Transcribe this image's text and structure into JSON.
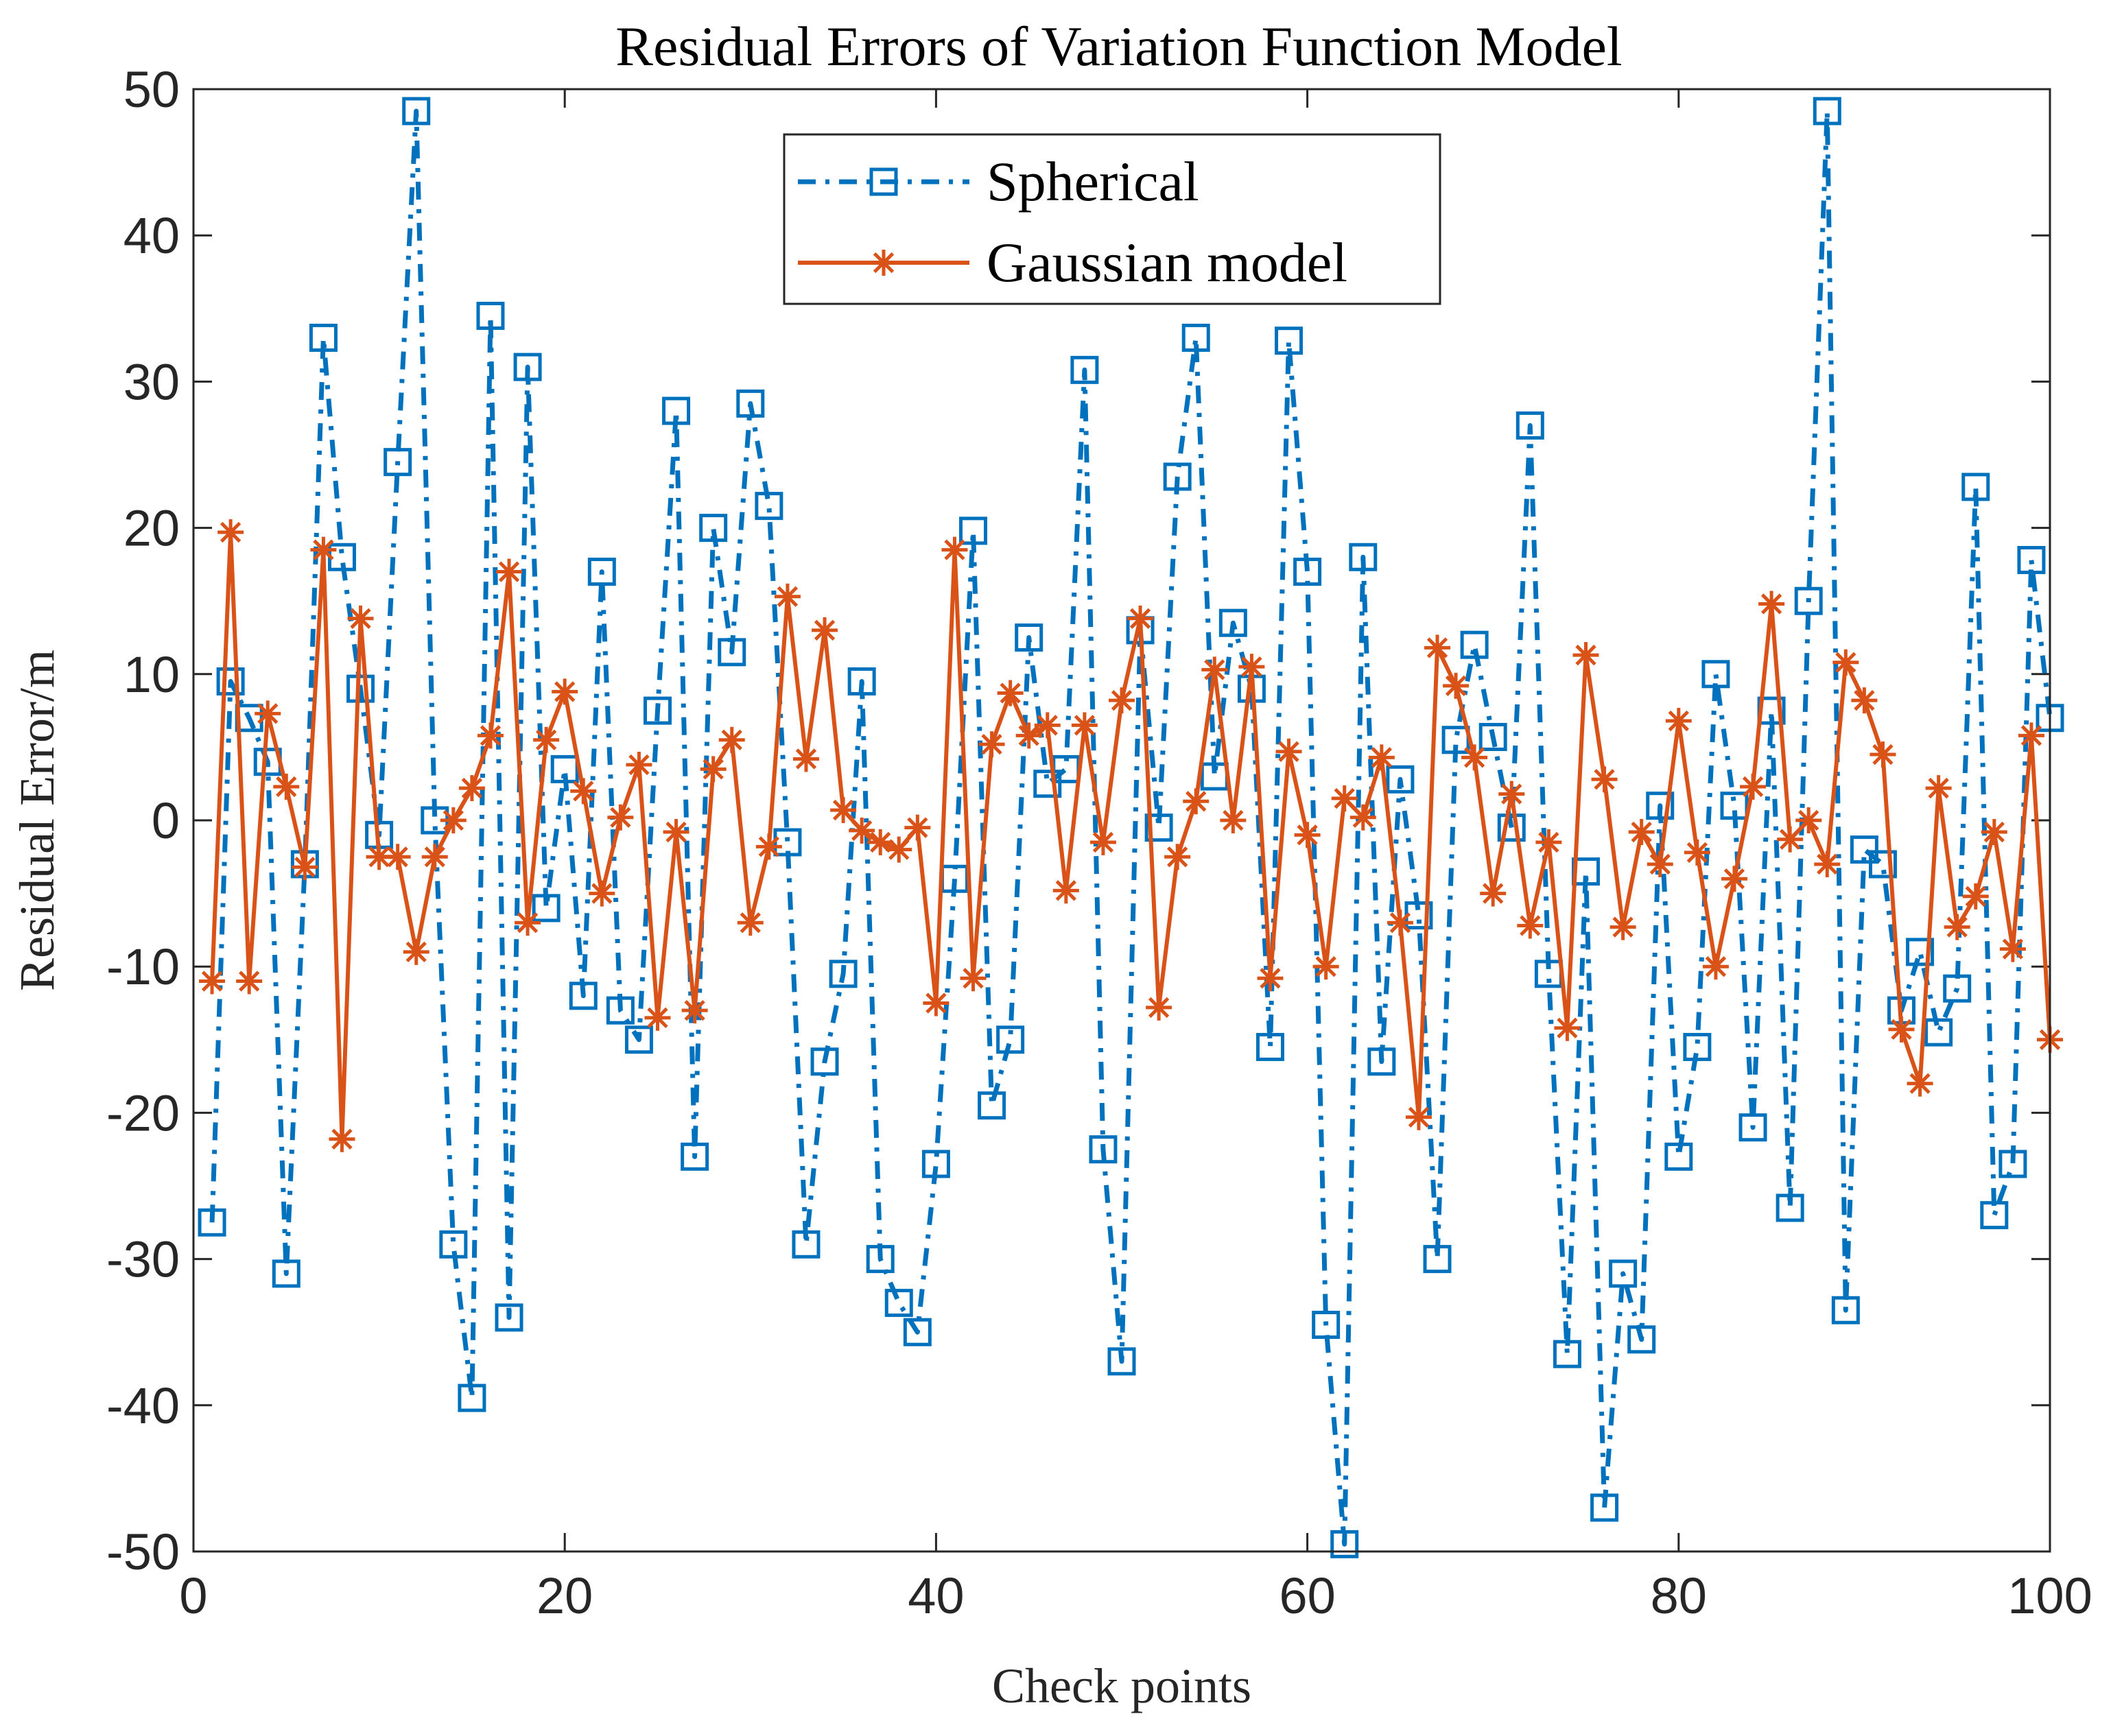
{
  "chart_data": {
    "type": "line",
    "title": "Residual Errors of Variation Function Model",
    "xlabel": "Check points",
    "ylabel": "Residual Error/m",
    "xlim": [
      0,
      100
    ],
    "ylim": [
      -50,
      50
    ],
    "xticks": [
      0,
      20,
      40,
      60,
      80,
      100
    ],
    "xtick_labels": [
      "0",
      "20",
      "40",
      "60",
      "80",
      "100"
    ],
    "yticks": [
      50,
      40,
      30,
      20,
      10,
      0,
      -10,
      -20,
      -30,
      -40,
      -50
    ],
    "ytick_labels": [
      "50",
      "40",
      "30",
      "20",
      "10",
      "0",
      "-10",
      "-20",
      "-30",
      "-40",
      "-50"
    ],
    "grid": false,
    "legend_position": "top-center",
    "series": [
      {
        "name": "Spherical",
        "color": "#0072BD",
        "line_style": "dash-dot",
        "marker": "square",
        "x": [
          1,
          2,
          3,
          4,
          5,
          6,
          7,
          8,
          9,
          10,
          11,
          12,
          13,
          14,
          15,
          16,
          17,
          18,
          19,
          20,
          21,
          22,
          23,
          24,
          25,
          26,
          27,
          28,
          29,
          30,
          31,
          32,
          33,
          34,
          35,
          36,
          37,
          38,
          39,
          40,
          41,
          42,
          43,
          44,
          45,
          46,
          47,
          48,
          49,
          50,
          51,
          52,
          53,
          54,
          55,
          56,
          57,
          58,
          59,
          60,
          61,
          62,
          63,
          64,
          65,
          66,
          67,
          68,
          69,
          70,
          71,
          72,
          73,
          74,
          75,
          76,
          77,
          78,
          79,
          80,
          81,
          82,
          83,
          84,
          85,
          86,
          87,
          88,
          89,
          90,
          91,
          92,
          93,
          94,
          95,
          96,
          97,
          98,
          99,
          100
        ],
        "values": [
          -27.5,
          9.5,
          7,
          4,
          -31,
          -3,
          33,
          18,
          9,
          -1,
          24.5,
          48.5,
          0,
          -29,
          -39.5,
          34.5,
          -34,
          31,
          -6,
          3.5,
          -12,
          17,
          -13,
          -15,
          7.5,
          28,
          -23,
          20,
          11.5,
          28.5,
          21.5,
          -1.5,
          -29,
          -16.5,
          -10.5,
          9.5,
          -30,
          -33,
          -35,
          -23.5,
          -4,
          19.8,
          -19.5,
          -15,
          12.5,
          2.5,
          3.5,
          30.8,
          -22.5,
          -37,
          13,
          -0.5,
          23.5,
          33,
          3,
          13.5,
          9,
          -15.5,
          32.8,
          17,
          -34.5,
          -49.5,
          18,
          -16.5,
          2.8,
          -6.5,
          -30,
          5.5,
          12,
          5.7,
          -0.5,
          27,
          -10.5,
          -36.5,
          -3.5,
          -47,
          -31,
          -35.5,
          1,
          -23,
          -15.5,
          10,
          1,
          -21,
          7.5,
          -26.5,
          15,
          48.5,
          -33.5,
          -2,
          -3,
          -13,
          -9,
          -14.5,
          -11.5,
          22.8,
          -27,
          -23.5,
          17.8,
          7
        ]
      },
      {
        "name": "Gaussian model",
        "color": "#D95319",
        "line_style": "solid",
        "marker": "asterisk",
        "x": [
          1,
          2,
          3,
          4,
          5,
          6,
          7,
          8,
          9,
          10,
          11,
          12,
          13,
          14,
          15,
          16,
          17,
          18,
          19,
          20,
          21,
          22,
          23,
          24,
          25,
          26,
          27,
          28,
          29,
          30,
          31,
          32,
          33,
          34,
          35,
          36,
          37,
          38,
          39,
          40,
          41,
          42,
          43,
          44,
          45,
          46,
          47,
          48,
          49,
          50,
          51,
          52,
          53,
          54,
          55,
          56,
          57,
          58,
          59,
          60,
          61,
          62,
          63,
          64,
          65,
          66,
          67,
          68,
          69,
          70,
          71,
          72,
          73,
          74,
          75,
          76,
          77,
          78,
          79,
          80,
          81,
          82,
          83,
          84,
          85,
          86,
          87,
          88,
          89,
          90,
          91,
          92,
          93,
          94,
          95,
          96,
          97,
          98,
          99,
          100
        ],
        "values": [
          -11,
          19.7,
          -11,
          7.3,
          2.3,
          -3.2,
          18.5,
          -21.8,
          13.8,
          -2.5,
          -2.5,
          -9,
          -2.5,
          0,
          2.2,
          5.8,
          17,
          -7,
          5.5,
          8.8,
          2,
          -5,
          0.2,
          3.8,
          -13.5,
          -0.8,
          -13,
          3.5,
          5.5,
          -7,
          -1.8,
          15.3,
          4.2,
          13,
          0.7,
          -0.7,
          -1.5,
          -2,
          -0.5,
          -12.5,
          18.5,
          -10.8,
          5.2,
          8.7,
          5.8,
          6.5,
          -4.8,
          6.5,
          -1.5,
          8.2,
          13.8,
          -12.8,
          -2.5,
          1.3,
          10.3,
          0,
          10.5,
          -10.8,
          4.7,
          -1,
          -10,
          1.5,
          0.2,
          4.3,
          -7,
          -20.3,
          11.8,
          9.2,
          4.3,
          -5,
          1.8,
          -7.2,
          -1.5,
          -14.2,
          11.3,
          2.8,
          -7.3,
          -0.8,
          -3,
          6.8,
          -2.2,
          -10,
          -4,
          2.3,
          14.8,
          -1.3,
          0,
          -3,
          10.8,
          8.2,
          4.5,
          -14.3,
          -18,
          2.2,
          -7.3,
          -5.2,
          -0.8,
          -8.8,
          5.8,
          -15
        ]
      }
    ]
  }
}
